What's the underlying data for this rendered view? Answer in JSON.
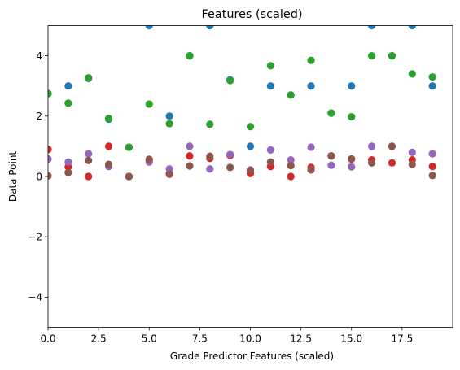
{
  "chart_data": {
    "type": "scatter",
    "title": "Features (scaled)",
    "xlabel": "Grade Predictor Features (scaled)",
    "ylabel": "Data Point",
    "xlim": [
      0,
      20
    ],
    "ylim": [
      -5,
      5
    ],
    "xticks": [
      0,
      2.5,
      5,
      7.5,
      10,
      12.5,
      15,
      17.5
    ],
    "xtick_labels": [
      "0.0",
      "2.5",
      "5.0",
      "7.5",
      "10.0",
      "12.5",
      "15.0",
      "17.5"
    ],
    "yticks": [
      -4,
      -2,
      0,
      2,
      4
    ],
    "ytick_labels": [
      "−4",
      "−2",
      "0",
      "2",
      "4"
    ],
    "grid": false,
    "legend": "none",
    "x": [
      0,
      1,
      2,
      3,
      4,
      5,
      6,
      7,
      8,
      9,
      10,
      11,
      12,
      13,
      14,
      15,
      16,
      17,
      18,
      19
    ],
    "series": [
      {
        "color": "#1f77b4",
        "values": [
          2.75,
          3.0,
          3.25,
          1.9,
          0.97,
          5.0,
          2.0,
          4.0,
          5.0,
          3.2,
          1.0,
          3.0,
          2.7,
          3.0,
          2.1,
          3.0,
          5.0,
          4.0,
          5.0,
          3.0
        ]
      },
      {
        "color": "#2ca02c",
        "values": [
          2.75,
          2.43,
          3.27,
          1.92,
          0.97,
          2.4,
          1.75,
          4.0,
          1.73,
          3.18,
          1.65,
          3.67,
          2.7,
          3.85,
          2.1,
          1.98,
          4.0,
          4.0,
          3.4,
          3.3
        ]
      },
      {
        "color": "#d62728",
        "values": [
          0.9,
          0.32,
          0.0,
          1.0,
          0.0,
          0.55,
          0.1,
          0.68,
          0.6,
          0.7,
          0.1,
          0.33,
          0.0,
          0.3,
          0.68,
          0.58,
          0.55,
          0.45,
          0.55,
          0.33
        ]
      },
      {
        "color": "#9467bd",
        "values": [
          0.58,
          0.48,
          0.75,
          0.33,
          0.0,
          0.48,
          0.25,
          1.0,
          0.25,
          0.73,
          0.22,
          0.88,
          0.55,
          0.97,
          0.37,
          0.32,
          1.0,
          1.0,
          0.8,
          0.75
        ]
      },
      {
        "color": "#8c564b",
        "values": [
          0.02,
          0.13,
          0.53,
          0.4,
          0.0,
          0.57,
          0.07,
          0.35,
          0.67,
          0.3,
          0.2,
          0.48,
          0.36,
          0.22,
          0.68,
          0.58,
          0.45,
          1.0,
          0.4,
          0.03
        ]
      }
    ]
  }
}
